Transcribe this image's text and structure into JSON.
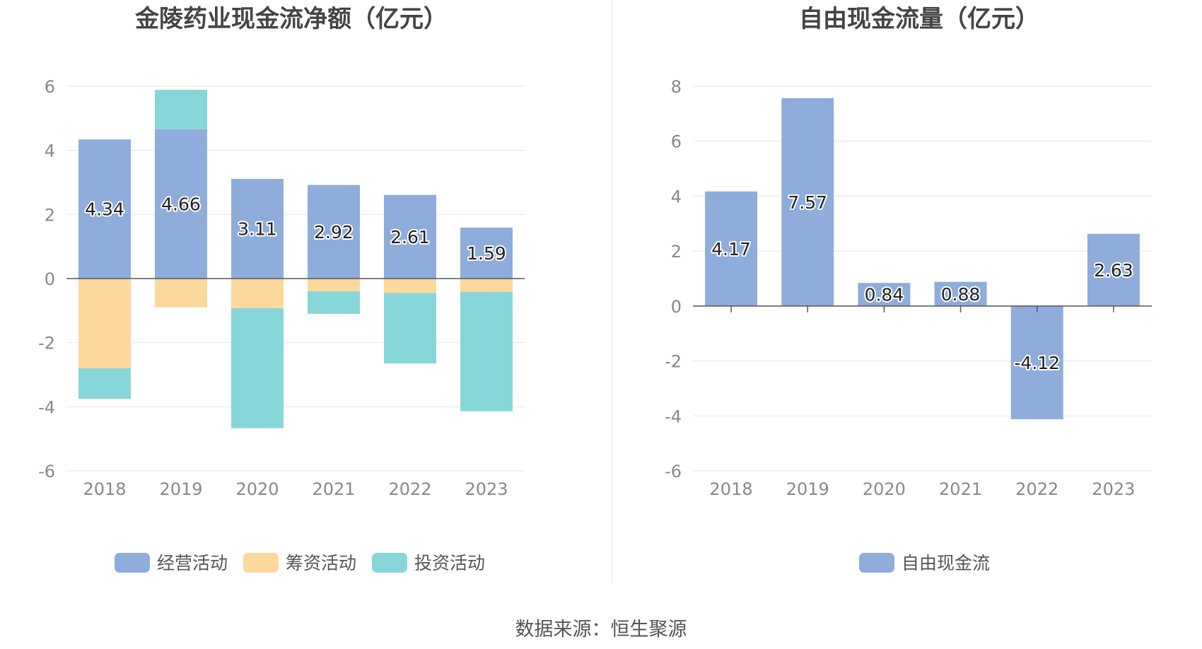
{
  "source_label": "数据来源：恒生聚源",
  "colors": {
    "operating": "#8eaddb",
    "financing": "#fdd89d",
    "investing": "#87d6da",
    "free_cash_flow": "#8eaddb",
    "grid": "#e3e6ef",
    "axis_text": "#888888",
    "title_text": "#444444",
    "zero_line": "#555555"
  },
  "chart_data": [
    {
      "type": "bar",
      "stacked": true,
      "title": "金陵药业现金流净额（亿元）",
      "categories": [
        "2018",
        "2019",
        "2020",
        "2021",
        "2022",
        "2023"
      ],
      "ylim": [
        -6,
        6
      ],
      "yticks": [
        6,
        4,
        2,
        0,
        -2,
        -4,
        -6
      ],
      "grid": true,
      "legend_position": "bottom",
      "series": [
        {
          "name": "经营活动",
          "color_key": "operating",
          "values": [
            4.34,
            4.66,
            3.11,
            2.92,
            2.61,
            1.59
          ],
          "labels": [
            "4.34",
            "4.66",
            "3.11",
            "2.92",
            "2.61",
            "1.59"
          ]
        },
        {
          "name": "筹资活动",
          "color_key": "financing",
          "values": [
            -2.8,
            -0.9,
            -0.92,
            -0.4,
            -0.45,
            -0.42
          ]
        },
        {
          "name": "投资活动",
          "color_key": "investing",
          "values": [
            -0.95,
            1.23,
            -3.75,
            -0.7,
            -2.2,
            -3.72
          ]
        }
      ]
    },
    {
      "type": "bar",
      "stacked": false,
      "title": "自由现金流量（亿元）",
      "categories": [
        "2018",
        "2019",
        "2020",
        "2021",
        "2022",
        "2023"
      ],
      "ylim": [
        -6,
        8
      ],
      "yticks": [
        8,
        6,
        4,
        2,
        0,
        -2,
        -4,
        -6
      ],
      "grid": true,
      "legend_position": "bottom",
      "series": [
        {
          "name": "自由现金流",
          "color_key": "free_cash_flow",
          "values": [
            4.17,
            7.57,
            0.84,
            0.88,
            -4.12,
            2.63
          ],
          "labels": [
            "4.17",
            "7.57",
            "0.84",
            "0.88",
            "-4.12",
            "2.63"
          ]
        }
      ]
    }
  ]
}
